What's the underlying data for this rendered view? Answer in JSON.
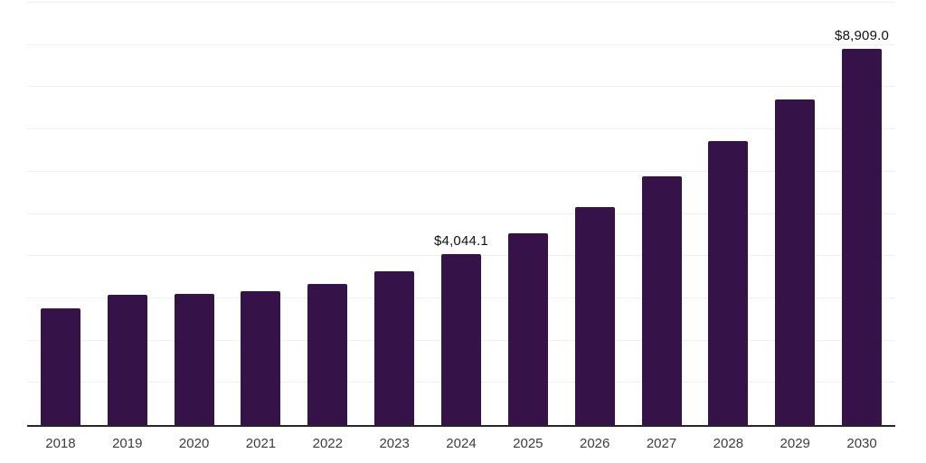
{
  "chart_data": {
    "type": "bar",
    "title": "",
    "xlabel": "",
    "ylabel": "",
    "categories": [
      "2018",
      "2019",
      "2020",
      "2021",
      "2022",
      "2023",
      "2024",
      "2025",
      "2026",
      "2027",
      "2028",
      "2029",
      "2030"
    ],
    "values": [
      2760,
      3090,
      3110,
      3165,
      3340,
      3640,
      4044.1,
      4550,
      5160,
      5890,
      6715,
      7715,
      8909.0
    ],
    "data_labels": [
      "",
      "",
      "",
      "",
      "",
      "",
      "$4,044.1",
      "",
      "",
      "",
      "",
      "",
      "$8,909.0"
    ],
    "ylim": [
      0,
      10000
    ],
    "grid": true,
    "grid_step": 1000,
    "legend": false,
    "y_tick_labels_visible": false,
    "colors": {
      "bar": "#351349",
      "gridline": "#efefef",
      "axis_line": "#26262b",
      "x_tick_text": "#3d3d3d",
      "data_label_text": "#111111",
      "background": "#ffffff"
    }
  }
}
